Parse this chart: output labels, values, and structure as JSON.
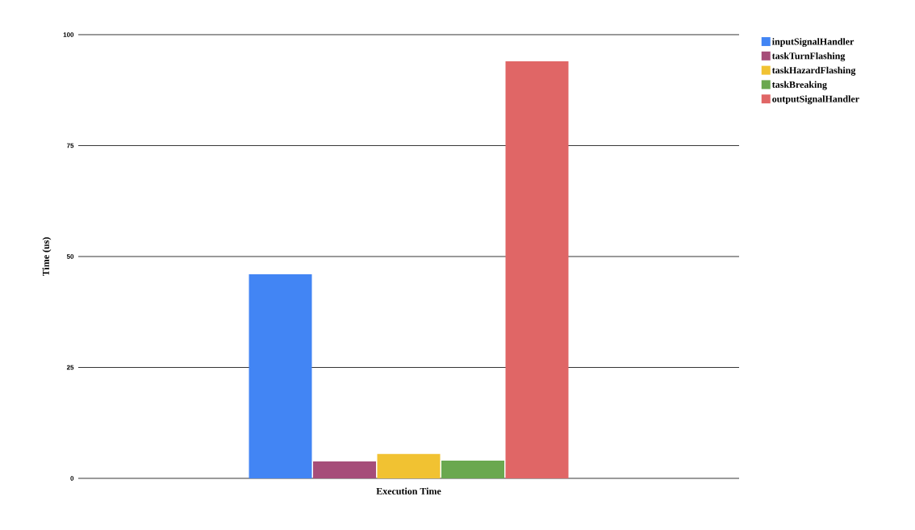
{
  "chart_data": {
    "type": "bar",
    "ylabel": "Time (us)",
    "categories": [
      "Execution Time"
    ],
    "series": [
      {
        "name": "inputSignalHandler",
        "color": "#4285f4",
        "values": [
          46
        ]
      },
      {
        "name": "taskTurnFlashing",
        "color": "#a64d79",
        "values": [
          3.8
        ]
      },
      {
        "name": "taskHazardFlashing",
        "color": "#f1c232",
        "values": [
          5.5
        ]
      },
      {
        "name": "taskBreaking",
        "color": "#6aa84f",
        "values": [
          4
        ]
      },
      {
        "name": "outputSignalHandler",
        "color": "#e06666",
        "values": [
          94
        ]
      }
    ],
    "ylim": [
      0,
      100
    ],
    "yticks": [
      0,
      25,
      50,
      75,
      100
    ],
    "grid": "y",
    "legend": "right"
  }
}
